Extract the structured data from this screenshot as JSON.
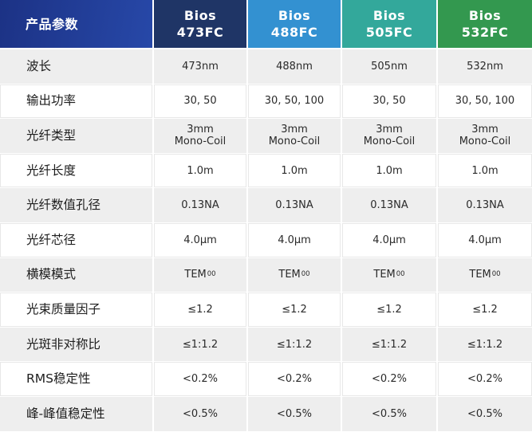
{
  "table": {
    "header": {
      "param_label": "产品参数",
      "models": [
        {
          "line1": "Bios",
          "line2": "473FC",
          "color": "#1f3566"
        },
        {
          "line1": "Bios",
          "line2": "488FC",
          "color": "#3391d1"
        },
        {
          "line1": "Bios",
          "line2": "505FC",
          "color": "#33a89b"
        },
        {
          "line1": "Bios",
          "line2": "532FC",
          "color": "#33984f"
        }
      ]
    },
    "rows": [
      {
        "label": "波长",
        "values": [
          "473nm",
          "488nm",
          "505nm",
          "532nm"
        ]
      },
      {
        "label": "输出功率",
        "values": [
          "30, 50",
          "30, 50, 100",
          "30, 50",
          "30, 50, 100"
        ]
      },
      {
        "label": "光纤类型",
        "values": [
          "3mm\nMono-Coil",
          "3mm\nMono-Coil",
          "3mm\nMono-Coil",
          "3mm\nMono-Coil"
        ]
      },
      {
        "label": "光纤长度",
        "values": [
          "1.0m",
          "1.0m",
          "1.0m",
          "1.0m"
        ]
      },
      {
        "label": "光纤数值孔径",
        "values": [
          "0.13NA",
          "0.13NA",
          "0.13NA",
          "0.13NA"
        ]
      },
      {
        "label": "光纤芯径",
        "values": [
          "4.0μm",
          "4.0μm",
          "4.0μm",
          "4.0μm"
        ]
      },
      {
        "label": "横模模式",
        "values": [
          {
            "text": "TEM",
            "sub": "00"
          },
          {
            "text": "TEM",
            "sub": "00"
          },
          {
            "text": "TEM",
            "sub": "00"
          },
          {
            "text": "TEM",
            "sub": "00"
          }
        ]
      },
      {
        "label": "光束质量因子",
        "values": [
          "≤1.2",
          "≤1.2",
          "≤1.2",
          "≤1.2"
        ]
      },
      {
        "label": "光斑非对称比",
        "values": [
          "≤1:1.2",
          "≤1:1.2",
          "≤1:1.2",
          "≤1:1.2"
        ]
      },
      {
        "label": "RMS稳定性",
        "values": [
          "<0.2%",
          "<0.2%",
          "<0.2%",
          "<0.2%"
        ]
      },
      {
        "label": "峰-峰值稳定性",
        "values": [
          "<0.5%",
          "<0.5%",
          "<0.5%",
          "<0.5%"
        ]
      }
    ]
  }
}
